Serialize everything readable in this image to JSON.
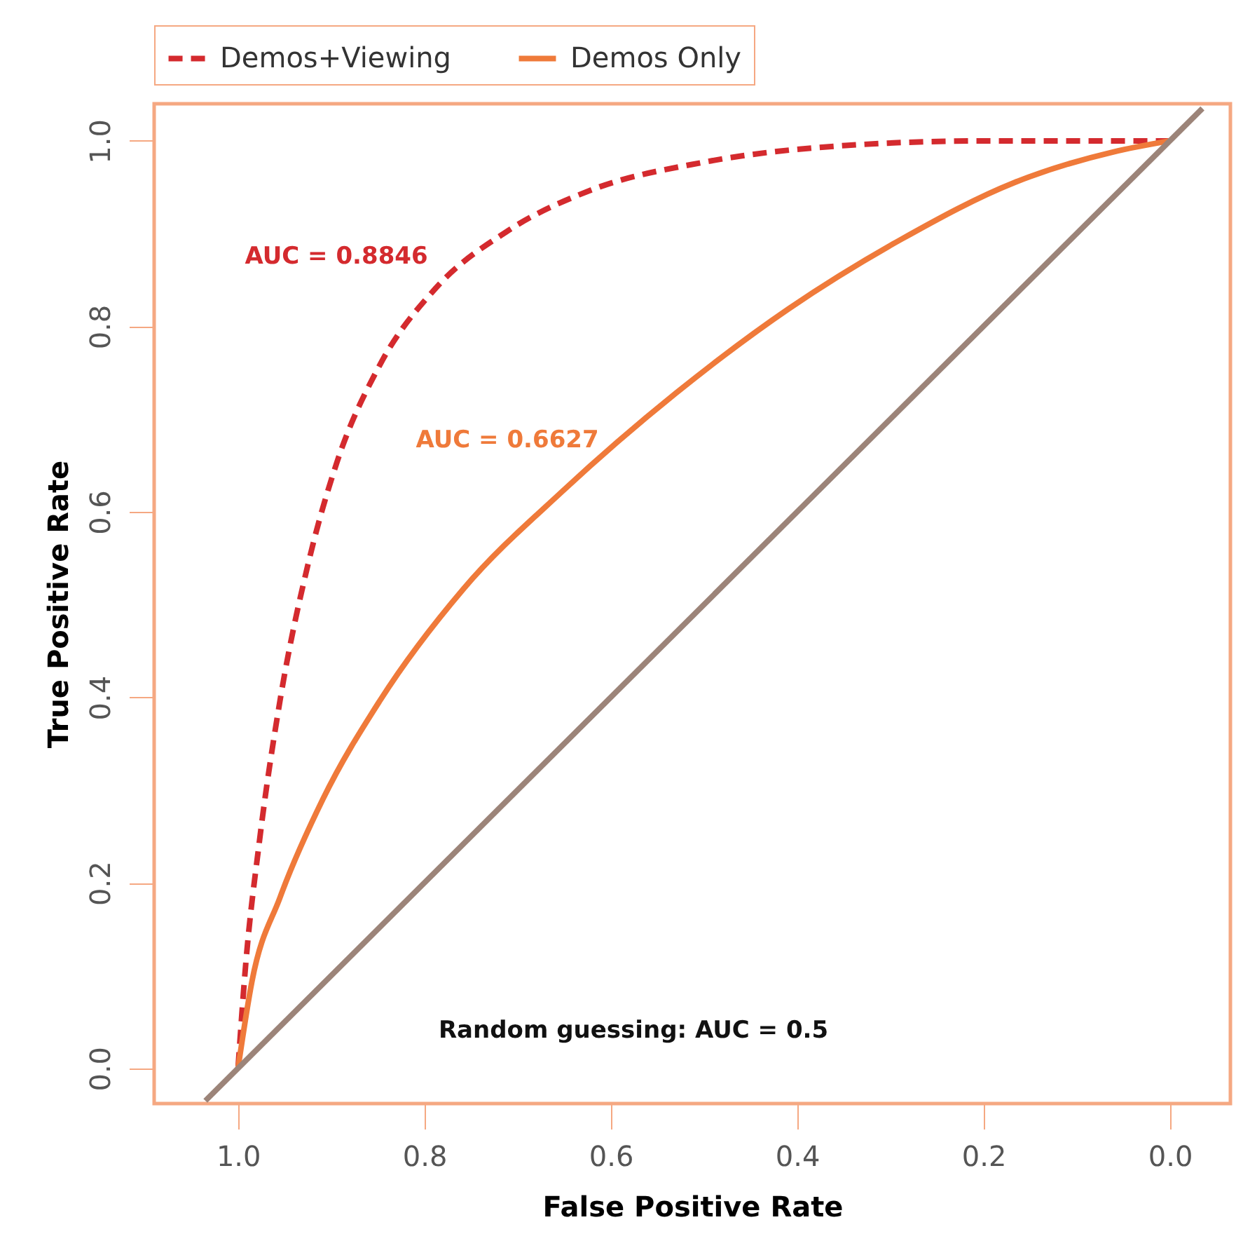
{
  "chart_data": {
    "type": "line",
    "xlabel": "False Positive Rate",
    "ylabel": "True Positive Rate",
    "xlim": [
      1.09,
      -0.065
    ],
    "ylim": [
      -0.038,
      1.04
    ],
    "xticks": [
      {
        "value": 1.0,
        "label": "1.0"
      },
      0.8,
      0.6,
      0.4,
      0.2,
      {
        "value": 0.0,
        "label": "0.0"
      }
    ],
    "yticks": [
      {
        "value": 0.0,
        "label": "0.0"
      },
      0.2,
      0.4,
      0.6,
      0.8,
      {
        "value": 1.0,
        "label": "1.0"
      }
    ],
    "grid": false,
    "legend": "top",
    "marker": "none",
    "series": [
      {
        "name": "Demos+Viewing",
        "color": "#d42a2e",
        "line_style": "dashed",
        "x": [
          1.0,
          0.992,
          0.977,
          0.955,
          0.924,
          0.894,
          0.848,
          0.788,
          0.712,
          0.621,
          0.5,
          0.348,
          0.197,
          0.076,
          0.0
        ],
        "values": [
          0.0,
          0.109,
          0.245,
          0.396,
          0.547,
          0.653,
          0.758,
          0.841,
          0.902,
          0.947,
          0.977,
          0.995,
          1.0,
          1.0,
          1.0
        ]
      },
      {
        "name": "Demos Only",
        "color": "#ef7a3a",
        "line_style": "solid",
        "x": [
          1.0,
          0.985,
          0.955,
          0.909,
          0.848,
          0.758,
          0.652,
          0.53,
          0.409,
          0.288,
          0.167,
          0.061,
          0.0
        ],
        "values": [
          0.0,
          0.094,
          0.184,
          0.29,
          0.396,
          0.517,
          0.622,
          0.728,
          0.819,
          0.894,
          0.955,
          0.988,
          1.0
        ]
      },
      {
        "color": "#9c8479",
        "line_style": "solid",
        "x": [
          1.035,
          -0.035
        ],
        "values": [
          -0.035,
          1.035
        ]
      }
    ],
    "annotations": [
      "AUC = 0.8846",
      "AUC = 0.6627",
      "Random guessing: AUC = 0.5"
    ]
  }
}
